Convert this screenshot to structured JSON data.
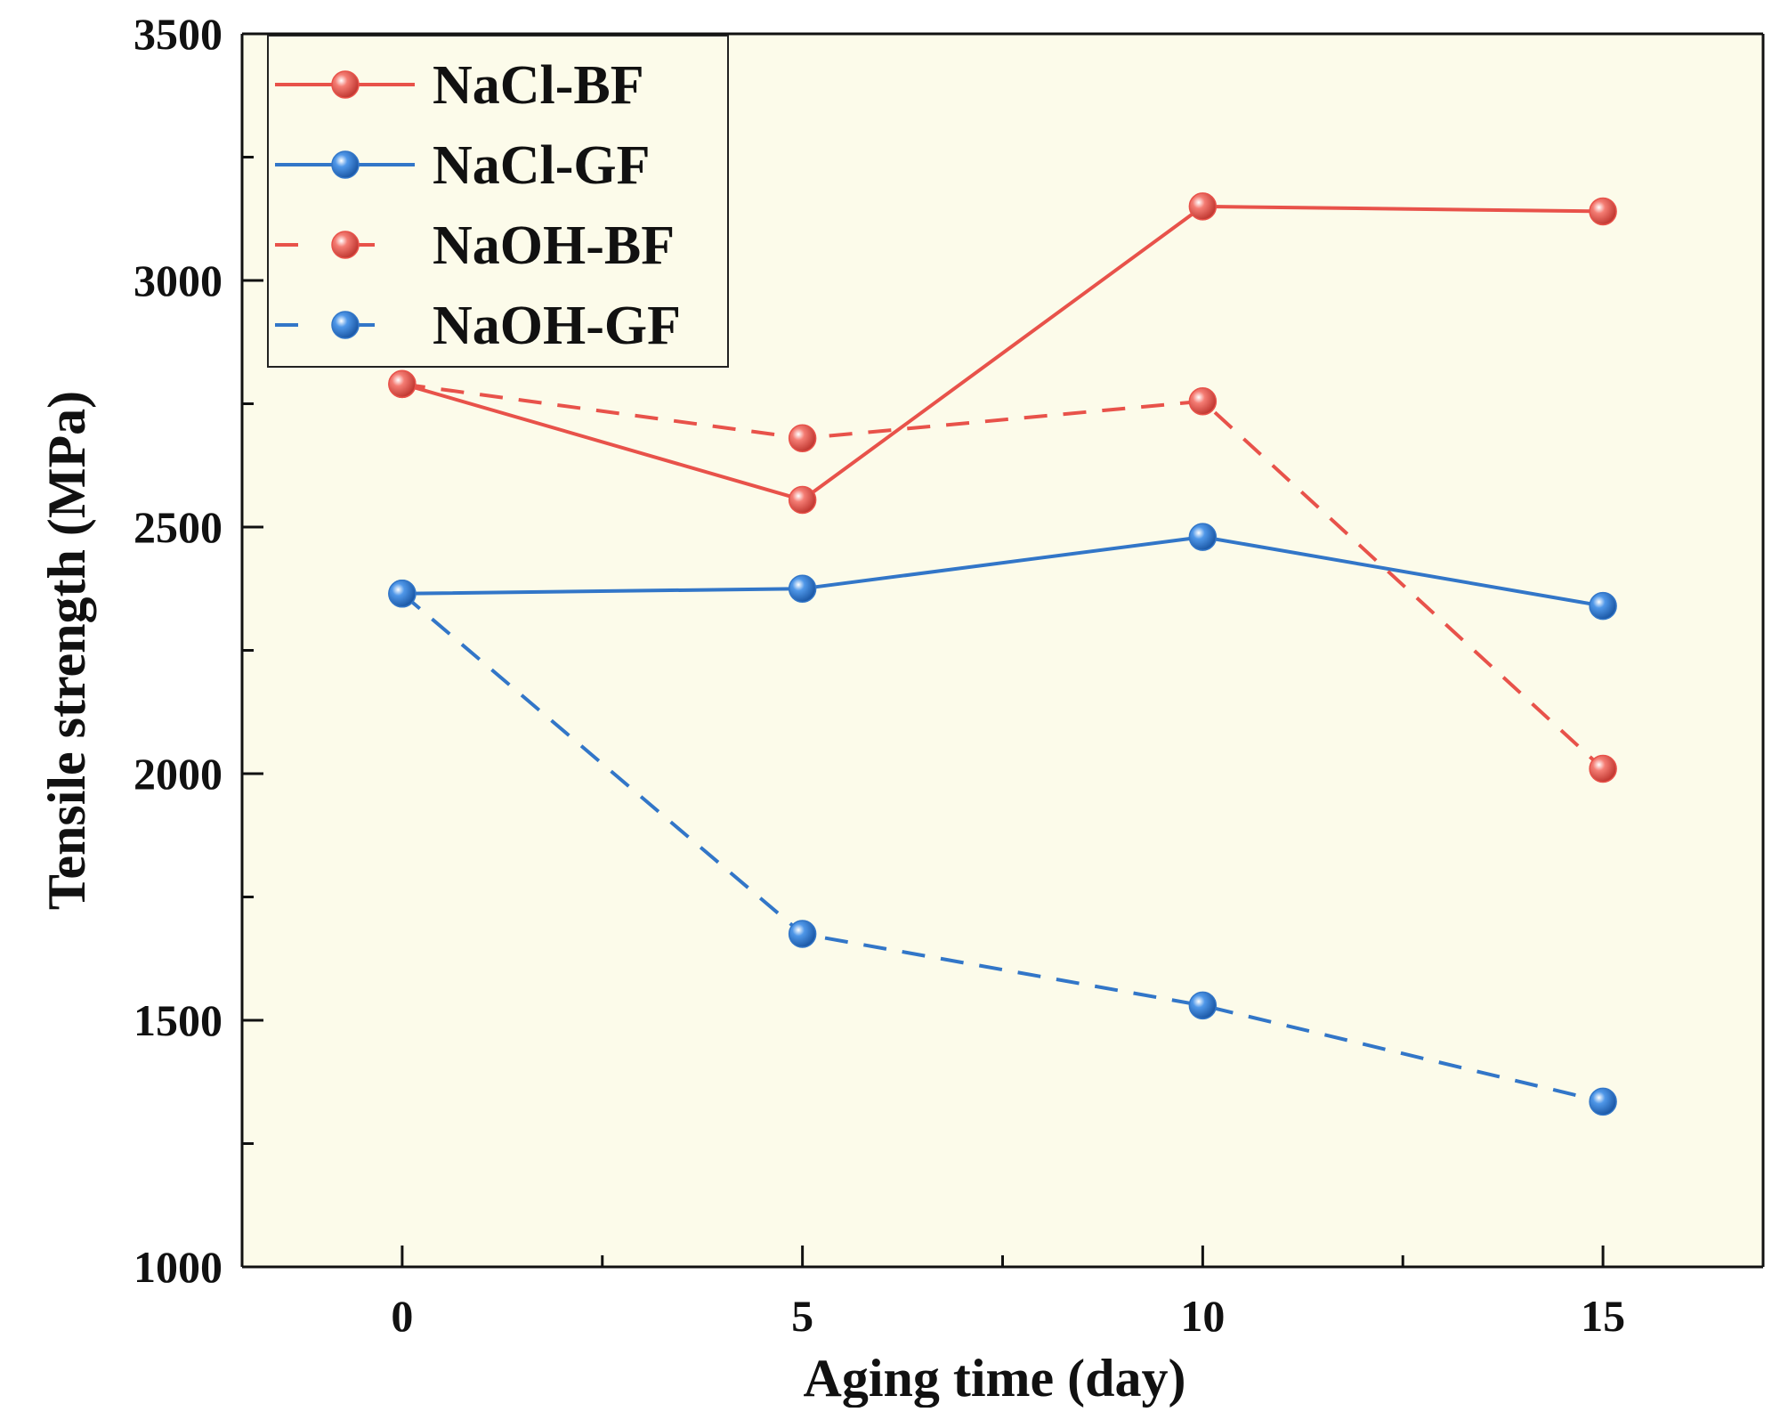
{
  "chart_data": {
    "type": "line",
    "title": "",
    "xlabel": "Aging time (day)",
    "ylabel": "Tensile strength (MPa)",
    "xlim": [
      -2,
      17
    ],
    "ylim": [
      1000,
      3500
    ],
    "x_ticks": [
      0,
      5,
      10,
      15
    ],
    "x_tick_labels": [
      "0",
      "5",
      "10",
      "15"
    ],
    "x_minor_ticks": [
      2.5,
      7.5,
      12.5
    ],
    "y_ticks": [
      1000,
      1500,
      2000,
      2500,
      3000,
      3500
    ],
    "y_tick_labels": [
      "1000",
      "1500",
      "2000",
      "2500",
      "3000",
      "3500"
    ],
    "y_minor_ticks": [
      1250,
      1750,
      2250,
      2750,
      3250
    ],
    "grid": false,
    "legend_position": "top-left",
    "background_color": "#fcfbea",
    "x": [
      0,
      5,
      10,
      15
    ],
    "series": [
      {
        "name": "NaCl-BF",
        "values": [
          2790,
          2555,
          3150,
          3140
        ],
        "color": "#e8524a",
        "dash": "solid"
      },
      {
        "name": "NaCl-GF",
        "values": [
          2365,
          2375,
          2480,
          2340
        ],
        "color": "#3276c8",
        "dash": "solid"
      },
      {
        "name": "NaOH-BF",
        "values": [
          2790,
          2680,
          2755,
          2010
        ],
        "color": "#e8524a",
        "dash": "dashed"
      },
      {
        "name": "NaOH-GF",
        "values": [
          2365,
          1675,
          1530,
          1335
        ],
        "color": "#3276c8",
        "dash": "dashed"
      }
    ]
  }
}
